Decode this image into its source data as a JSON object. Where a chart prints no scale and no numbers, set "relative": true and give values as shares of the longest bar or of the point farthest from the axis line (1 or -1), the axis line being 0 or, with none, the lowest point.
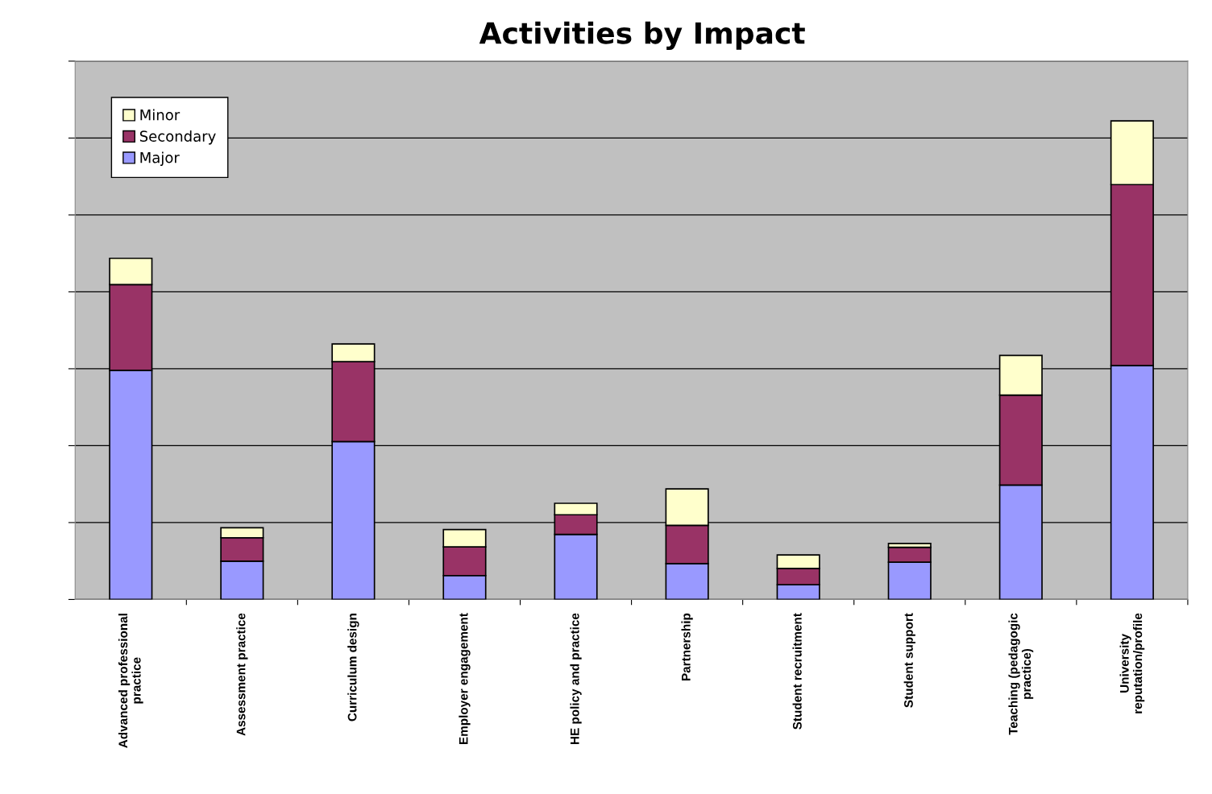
{
  "chart_data": {
    "type": "bar",
    "title": "Activities by Impact",
    "relative": true,
    "stacked": true,
    "grid": "y",
    "legend": "top left",
    "categories": [
      "Advanced professional\npractice",
      "Assessment practice",
      "Curriculum design",
      "Employer engagement",
      "HE policy and practice",
      "Partnership",
      "Student recruitment",
      "Student support",
      "Teaching (pedagogic\npractice)",
      "University\nreputation/profile"
    ],
    "series": [
      {
        "name": "Major",
        "color": "#9999ff",
        "values": [
          0.479,
          0.08,
          0.33,
          0.05,
          0.136,
          0.075,
          0.031,
          0.078,
          0.239,
          0.489
        ]
      },
      {
        "name": "Secondary",
        "color": "#993366",
        "values": [
          0.179,
          0.049,
          0.167,
          0.06,
          0.041,
          0.08,
          0.034,
          0.031,
          0.188,
          0.378
        ]
      },
      {
        "name": "Minor",
        "color": "#ffffcc",
        "values": [
          0.055,
          0.021,
          0.037,
          0.036,
          0.024,
          0.076,
          0.028,
          0.008,
          0.083,
          0.133
        ]
      }
    ]
  }
}
